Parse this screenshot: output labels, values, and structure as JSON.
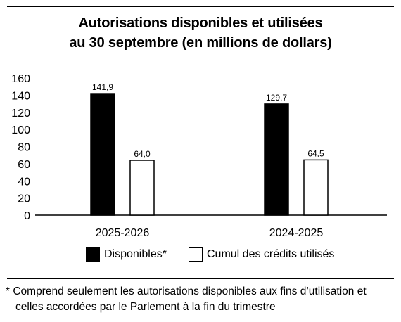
{
  "title_lines": [
    "Autorisations disponibles et utilisées",
    "au 30 septembre (en millions de dollars)"
  ],
  "footnote_lines": [
    "* Comprend seulement les autorisations disponibles aux fins d’utilisation et",
    "celles accordées par le Parlement à la fin du trimestre"
  ],
  "chart_data": {
    "type": "bar",
    "title": "Autorisations disponibles et utilisées au 30 septembre (en millions de dollars)",
    "categories": [
      "2025-2026",
      "2024-2025"
    ],
    "series": [
      {
        "name": "Disponibles*",
        "values": [
          141.9,
          129.7
        ],
        "labels": [
          "141,9",
          "129,7"
        ],
        "color": "#000000"
      },
      {
        "name": "Cumul des crédits utilisés",
        "values": [
          64.0,
          64.5
        ],
        "labels": [
          "64,0",
          "64,5"
        ],
        "color": "#ffffff"
      }
    ],
    "ylim": [
      0,
      160
    ],
    "yticks": [
      0,
      20,
      40,
      60,
      80,
      100,
      120,
      140,
      160
    ],
    "grid": false,
    "legend_position": "bottom"
  }
}
